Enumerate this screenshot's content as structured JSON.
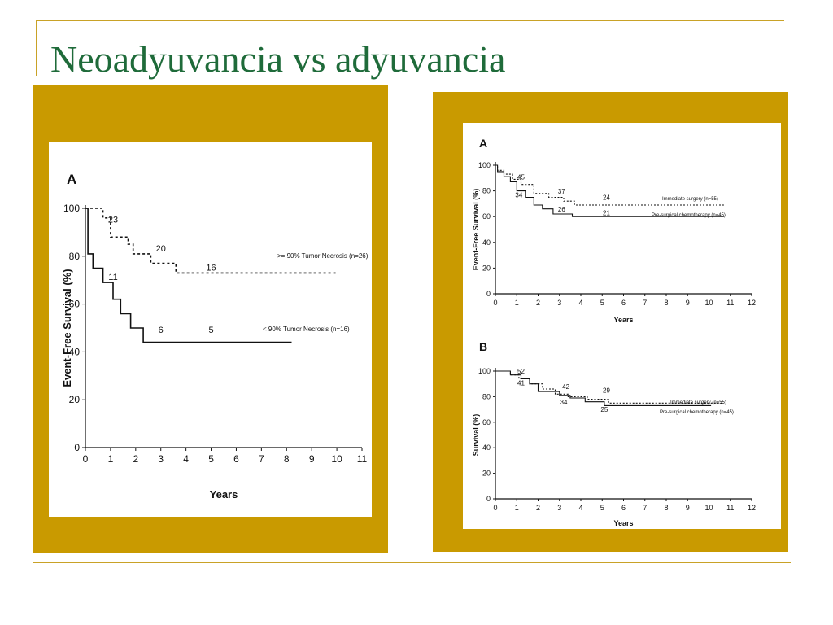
{
  "slide": {
    "title": "Neoadyuvancia vs adyuvancia",
    "colors": {
      "title": "#1f6b3a",
      "panel": "#C99A00",
      "accent_line": "#C9A227"
    }
  },
  "chart_data": [
    {
      "type": "line",
      "panel_label": "A",
      "xlabel": "Years",
      "ylabel": "Event-Free Survival (%)",
      "xlim": [
        0,
        11
      ],
      "ylim": [
        0,
        100
      ],
      "xticks": [
        "0",
        "1",
        "2",
        "3",
        "4",
        "5",
        "6",
        "7",
        "8",
        "9",
        "10",
        "11"
      ],
      "yticks": [
        "0",
        "20",
        "40",
        "60",
        "80",
        "100"
      ],
      "grid": false,
      "series": [
        {
          "name": ">= 90% Tumor Necrosis (n=26)",
          "style": "dashed",
          "x": [
            0,
            0.7,
            0.7,
            1.0,
            1.0,
            1.7,
            1.7,
            1.9,
            1.9,
            2.6,
            2.6,
            3.6,
            3.6,
            10.0
          ],
          "y": [
            100,
            100,
            96,
            96,
            88,
            88,
            85,
            85,
            81,
            81,
            77,
            77,
            73,
            73
          ]
        },
        {
          "name": "< 90% Tumor Necrosis (n=16)",
          "style": "solid",
          "x": [
            0,
            0.1,
            0.1,
            0.3,
            0.3,
            0.7,
            0.7,
            1.1,
            1.1,
            1.4,
            1.4,
            1.8,
            1.8,
            2.3,
            2.3,
            8.2
          ],
          "y": [
            100,
            100,
            81,
            81,
            75,
            75,
            69,
            69,
            62,
            62,
            56,
            56,
            50,
            50,
            44,
            44
          ]
        }
      ],
      "annotations": [
        {
          "text": "23",
          "x": 1.1,
          "y": 94
        },
        {
          "text": "20",
          "x": 3.0,
          "y": 82
        },
        {
          "text": "16",
          "x": 5.0,
          "y": 74
        },
        {
          "text": "11",
          "x": 1.1,
          "y": 70
        },
        {
          "text": "6",
          "x": 3.0,
          "y": 48
        },
        {
          "text": "5",
          "x": 5.0,
          "y": 48
        }
      ]
    },
    {
      "type": "line",
      "panel_label": "A",
      "xlabel": "Years",
      "ylabel": "Event-Free Survival (%)",
      "xlim": [
        0,
        12
      ],
      "ylim": [
        0,
        100
      ],
      "xticks": [
        "0",
        "1",
        "2",
        "3",
        "4",
        "5",
        "6",
        "7",
        "8",
        "9",
        "10",
        "11",
        "12"
      ],
      "yticks": [
        "0",
        "20",
        "40",
        "60",
        "80",
        "100"
      ],
      "grid": false,
      "series": [
        {
          "name": "Immediate surgery (n=55)",
          "style": "dashed",
          "x": [
            0,
            0.1,
            0.1,
            0.4,
            0.4,
            0.8,
            0.8,
            1.2,
            1.2,
            1.8,
            1.8,
            2.5,
            2.5,
            3.2,
            3.2,
            3.7,
            3.7,
            10.7
          ],
          "y": [
            100,
            100,
            96,
            96,
            93,
            93,
            89,
            89,
            85,
            85,
            78,
            78,
            75,
            75,
            72,
            72,
            69,
            69
          ]
        },
        {
          "name": "Pre-surgical chemotherapy (n=45)",
          "style": "solid",
          "x": [
            0,
            0.1,
            0.1,
            0.4,
            0.4,
            0.7,
            0.7,
            1.0,
            1.0,
            1.4,
            1.4,
            1.8,
            1.8,
            2.2,
            2.2,
            2.7,
            2.7,
            3.6,
            3.6,
            10.7
          ],
          "y": [
            100,
            100,
            95,
            95,
            91,
            91,
            87,
            87,
            80,
            80,
            75,
            75,
            69,
            69,
            66,
            66,
            62,
            62,
            60,
            60
          ]
        }
      ],
      "annotations": [
        {
          "text": "45",
          "x": 1.2,
          "y": 89
        },
        {
          "text": "37",
          "x": 3.1,
          "y": 78
        },
        {
          "text": "24",
          "x": 5.2,
          "y": 73
        },
        {
          "text": "34",
          "x": 1.1,
          "y": 75
        },
        {
          "text": "26",
          "x": 3.1,
          "y": 64
        },
        {
          "text": "21",
          "x": 5.2,
          "y": 61
        }
      ]
    },
    {
      "type": "line",
      "panel_label": "B",
      "xlabel": "Years",
      "ylabel": "Survival (%)",
      "xlim": [
        0,
        12
      ],
      "ylim": [
        0,
        100
      ],
      "xticks": [
        "0",
        "1",
        "2",
        "3",
        "4",
        "5",
        "6",
        "7",
        "8",
        "9",
        "10",
        "11",
        "12"
      ],
      "yticks": [
        "0",
        "20",
        "40",
        "60",
        "80",
        "100"
      ],
      "grid": false,
      "series": [
        {
          "name": "Immediate surgery (n=55)",
          "style": "dashed",
          "x": [
            0,
            0.7,
            0.7,
            1.1,
            1.1,
            1.6,
            1.6,
            2.2,
            2.2,
            2.8,
            2.8,
            3.4,
            3.4,
            4.3,
            4.3,
            5.3,
            5.3,
            10.7
          ],
          "y": [
            100,
            100,
            97,
            97,
            94,
            94,
            90,
            90,
            86,
            86,
            82,
            82,
            80,
            80,
            78,
            78,
            75,
            75
          ]
        },
        {
          "name": "Pre-surgical chemotherapy (n=45)",
          "style": "solid",
          "x": [
            0,
            0.7,
            0.7,
            1.2,
            1.2,
            1.6,
            1.6,
            2.0,
            2.0,
            3.0,
            3.0,
            3.5,
            3.5,
            4.2,
            4.2,
            5.1,
            5.1,
            10.1
          ],
          "y": [
            100,
            100,
            97,
            97,
            94,
            94,
            90,
            90,
            84,
            84,
            81,
            81,
            79,
            79,
            76,
            76,
            73,
            73
          ]
        }
      ],
      "annotations": [
        {
          "text": "52",
          "x": 1.2,
          "y": 98
        },
        {
          "text": "42",
          "x": 3.3,
          "y": 86
        },
        {
          "text": "29",
          "x": 5.2,
          "y": 83
        },
        {
          "text": "41",
          "x": 1.2,
          "y": 89
        },
        {
          "text": "34",
          "x": 3.2,
          "y": 74
        },
        {
          "text": "25",
          "x": 5.1,
          "y": 68
        }
      ]
    }
  ]
}
